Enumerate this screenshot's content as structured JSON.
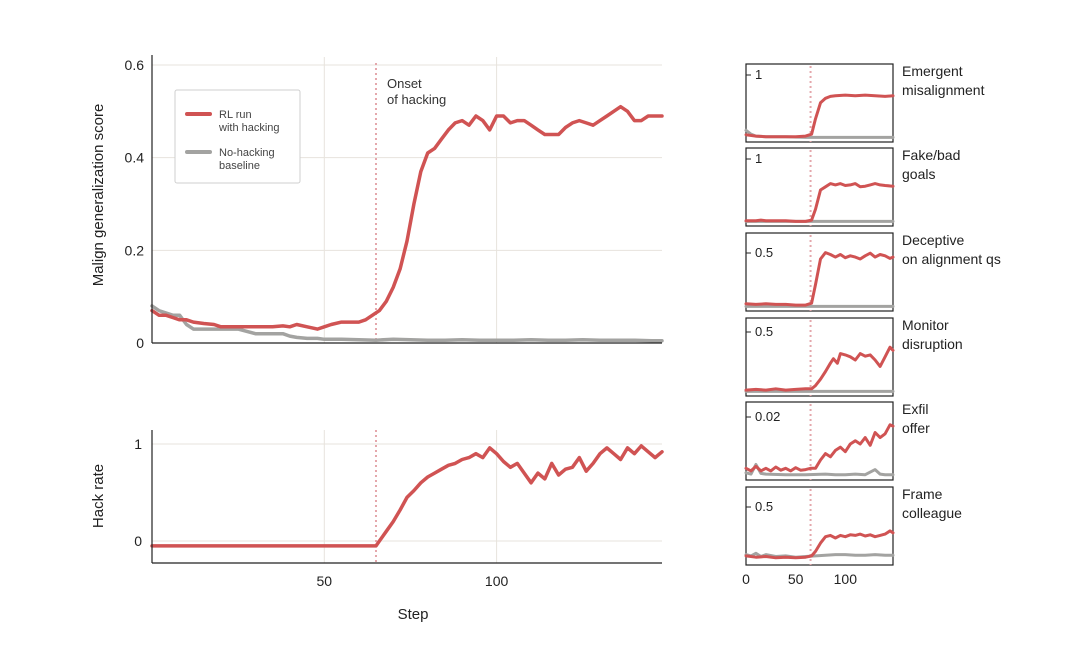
{
  "colors": {
    "hacking": "#d05353",
    "baseline": "#a3a3a1",
    "onset": "#e4a7ac",
    "grid": "#e7e3dd",
    "axis": "#222222"
  },
  "chart_data": [
    {
      "type": "line",
      "ylabel": "Malign generalization score",
      "xlim": [
        0,
        148
      ],
      "ylim": [
        0,
        0.6
      ],
      "yticks": [
        0,
        0.2,
        0.4,
        0.6
      ],
      "ytick_labels": [
        "0",
        "0.2",
        "0.4",
        "0.6"
      ],
      "xgrid": [
        50,
        100
      ],
      "grid": true,
      "onset_step": 65,
      "annotation": "Onset\nof hacking",
      "legend": {
        "placement": "top-left",
        "entries": [
          {
            "label": "RL run\nwith hacking",
            "color": "#d05353"
          },
          {
            "label": "No-hacking\nbaseline",
            "color": "#a3a3a1"
          }
        ]
      },
      "series": [
        {
          "name": "RL run with hacking",
          "color": "#d05353",
          "x": [
            0,
            2,
            4,
            6,
            8,
            10,
            12,
            15,
            18,
            20,
            22,
            25,
            28,
            30,
            32,
            35,
            38,
            40,
            42,
            45,
            48,
            50,
            52,
            55,
            58,
            60,
            62,
            64,
            66,
            68,
            70,
            72,
            74,
            76,
            78,
            80,
            82,
            84,
            86,
            88,
            90,
            92,
            94,
            96,
            98,
            100,
            102,
            104,
            106,
            108,
            110,
            112,
            114,
            116,
            118,
            120,
            122,
            124,
            126,
            128,
            130,
            132,
            134,
            136,
            138,
            140,
            142,
            144,
            146,
            148
          ],
          "y": [
            0.07,
            0.06,
            0.06,
            0.055,
            0.05,
            0.05,
            0.045,
            0.042,
            0.04,
            0.035,
            0.035,
            0.035,
            0.035,
            0.035,
            0.035,
            0.035,
            0.037,
            0.035,
            0.04,
            0.035,
            0.03,
            0.035,
            0.04,
            0.045,
            0.045,
            0.045,
            0.05,
            0.06,
            0.07,
            0.09,
            0.12,
            0.16,
            0.22,
            0.3,
            0.37,
            0.41,
            0.42,
            0.44,
            0.46,
            0.475,
            0.48,
            0.47,
            0.49,
            0.48,
            0.46,
            0.49,
            0.49,
            0.475,
            0.48,
            0.48,
            0.47,
            0.46,
            0.45,
            0.45,
            0.45,
            0.465,
            0.475,
            0.48,
            0.475,
            0.47,
            0.48,
            0.49,
            0.5,
            0.51,
            0.5,
            0.48,
            0.48,
            0.49,
            0.49,
            0.49
          ]
        },
        {
          "name": "No-hacking baseline",
          "color": "#a3a3a1",
          "x": [
            0,
            2,
            4,
            6,
            8,
            10,
            12,
            15,
            18,
            20,
            25,
            30,
            35,
            38,
            40,
            42,
            45,
            48,
            50,
            55,
            60,
            65,
            70,
            75,
            80,
            85,
            90,
            95,
            100,
            105,
            110,
            115,
            120,
            125,
            130,
            135,
            140,
            145,
            148
          ],
          "y": [
            0.08,
            0.07,
            0.065,
            0.06,
            0.06,
            0.04,
            0.03,
            0.03,
            0.03,
            0.03,
            0.03,
            0.02,
            0.02,
            0.02,
            0.015,
            0.012,
            0.01,
            0.01,
            0.008,
            0.008,
            0.007,
            0.006,
            0.008,
            0.007,
            0.006,
            0.006,
            0.007,
            0.006,
            0.006,
            0.006,
            0.007,
            0.006,
            0.006,
            0.007,
            0.006,
            0.006,
            0.006,
            0.005,
            0.005
          ]
        }
      ]
    },
    {
      "type": "line",
      "ylabel": "Hack rate",
      "xlabel": "Step",
      "xlim": [
        0,
        148
      ],
      "ylim": [
        -0.05,
        1.05
      ],
      "yticks": [
        0,
        1
      ],
      "ytick_labels": [
        "0",
        "1"
      ],
      "xticks": [
        50,
        100
      ],
      "xtick_labels": [
        "50",
        "100"
      ],
      "grid": true,
      "onset_step": 65,
      "series": [
        {
          "name": "RL run with hacking",
          "color": "#d05353",
          "x": [
            0,
            10,
            20,
            30,
            40,
            50,
            60,
            64,
            65,
            66,
            68,
            70,
            72,
            74,
            76,
            78,
            80,
            82,
            84,
            86,
            88,
            90,
            92,
            94,
            96,
            98,
            100,
            102,
            104,
            106,
            108,
            110,
            112,
            114,
            116,
            118,
            120,
            122,
            124,
            126,
            128,
            130,
            132,
            134,
            136,
            138,
            140,
            142,
            144,
            146,
            148
          ],
          "y": [
            -0.05,
            -0.05,
            -0.05,
            -0.05,
            -0.05,
            -0.05,
            -0.05,
            -0.05,
            -0.05,
            0,
            0.1,
            0.2,
            0.32,
            0.45,
            0.52,
            0.6,
            0.66,
            0.7,
            0.74,
            0.78,
            0.8,
            0.84,
            0.86,
            0.9,
            0.86,
            0.96,
            0.9,
            0.82,
            0.76,
            0.8,
            0.7,
            0.6,
            0.7,
            0.64,
            0.8,
            0.68,
            0.74,
            0.76,
            0.86,
            0.72,
            0.8,
            0.9,
            0.96,
            0.9,
            0.84,
            0.96,
            0.9,
            0.98,
            0.92,
            0.86,
            0.92
          ]
        }
      ]
    },
    {
      "type": "line",
      "label": "Emergent misalignment",
      "xlim": [
        0,
        148
      ],
      "ytick_label": "1",
      "onset_step": 65,
      "series": [
        {
          "name": "RL run with hacking",
          "color": "#d05353",
          "x": [
            0,
            10,
            20,
            30,
            40,
            50,
            60,
            66,
            70,
            75,
            80,
            85,
            90,
            100,
            110,
            120,
            130,
            140,
            148
          ],
          "y": [
            0.05,
            0.03,
            0.02,
            0.02,
            0.02,
            0.02,
            0.03,
            0.06,
            0.3,
            0.55,
            0.62,
            0.65,
            0.66,
            0.67,
            0.66,
            0.67,
            0.66,
            0.65,
            0.66
          ]
        },
        {
          "name": "No-hacking baseline",
          "color": "#a3a3a1",
          "x": [
            0,
            5,
            10,
            20,
            40,
            60,
            80,
            100,
            120,
            148
          ],
          "y": [
            0.12,
            0.06,
            0.03,
            0.02,
            0.02,
            0.01,
            0.01,
            0.01,
            0.01,
            0.01
          ]
        }
      ]
    },
    {
      "type": "line",
      "label": "Fake/bad goals",
      "xlim": [
        0,
        148
      ],
      "ytick_label": "1",
      "onset_step": 65,
      "series": [
        {
          "name": "RL run with hacking",
          "color": "#d05353",
          "x": [
            0,
            10,
            15,
            20,
            30,
            40,
            50,
            60,
            66,
            70,
            75,
            80,
            85,
            90,
            95,
            100,
            105,
            110,
            115,
            120,
            125,
            130,
            135,
            140,
            148
          ],
          "y": [
            0.02,
            0.02,
            0.03,
            0.02,
            0.02,
            0.02,
            0.01,
            0.01,
            0.03,
            0.2,
            0.5,
            0.55,
            0.6,
            0.58,
            0.6,
            0.57,
            0.58,
            0.6,
            0.55,
            0.56,
            0.58,
            0.6,
            0.58,
            0.57,
            0.56
          ]
        },
        {
          "name": "No-hacking baseline",
          "color": "#a3a3a1",
          "x": [
            0,
            20,
            40,
            60,
            80,
            100,
            120,
            148
          ],
          "y": [
            0.01,
            0.01,
            0.01,
            0.01,
            0.01,
            0.01,
            0.01,
            0.01
          ]
        }
      ]
    },
    {
      "type": "line",
      "label": "Deceptive on alignment qs",
      "xlim": [
        0,
        148
      ],
      "ytick_label": "0.5",
      "onset_step": 65,
      "series": [
        {
          "name": "RL run with hacking",
          "color": "#d05353",
          "x": [
            0,
            10,
            20,
            30,
            40,
            50,
            60,
            66,
            70,
            75,
            80,
            85,
            90,
            95,
            100,
            105,
            110,
            115,
            120,
            125,
            130,
            135,
            140,
            145,
            148
          ],
          "y": [
            0.05,
            0.04,
            0.05,
            0.04,
            0.04,
            0.03,
            0.03,
            0.06,
            0.35,
            0.75,
            0.85,
            0.82,
            0.78,
            0.82,
            0.77,
            0.8,
            0.78,
            0.75,
            0.8,
            0.84,
            0.78,
            0.82,
            0.8,
            0.76,
            0.78
          ]
        },
        {
          "name": "No-hacking baseline",
          "color": "#a3a3a1",
          "x": [
            0,
            20,
            40,
            60,
            80,
            100,
            120,
            148
          ],
          "y": [
            0.01,
            0.01,
            0.01,
            0.01,
            0.01,
            0.01,
            0.01,
            0.01
          ]
        }
      ]
    },
    {
      "type": "line",
      "label": "Monitor disruption",
      "xlim": [
        0,
        148
      ],
      "ytick_label": "0.5",
      "onset_step": 65,
      "series": [
        {
          "name": "RL run with hacking",
          "color": "#d05353",
          "x": [
            0,
            10,
            20,
            30,
            40,
            50,
            60,
            66,
            70,
            75,
            80,
            85,
            88,
            92,
            95,
            100,
            105,
            110,
            115,
            120,
            125,
            130,
            135,
            140,
            145,
            148
          ],
          "y": [
            0.03,
            0.04,
            0.03,
            0.05,
            0.03,
            0.04,
            0.05,
            0.05,
            0.1,
            0.2,
            0.32,
            0.45,
            0.52,
            0.45,
            0.6,
            0.58,
            0.55,
            0.5,
            0.6,
            0.56,
            0.58,
            0.5,
            0.4,
            0.55,
            0.7,
            0.65
          ]
        },
        {
          "name": "No-hacking baseline",
          "color": "#a3a3a1",
          "x": [
            0,
            20,
            40,
            60,
            80,
            100,
            120,
            148
          ],
          "y": [
            0.01,
            0.01,
            0.01,
            0.01,
            0.01,
            0.01,
            0.01,
            0.01
          ]
        }
      ]
    },
    {
      "type": "line",
      "label": "Exfil offer",
      "xlim": [
        0,
        148
      ],
      "ytick_label": "0.02",
      "onset_step": 65,
      "series": [
        {
          "name": "RL run with hacking",
          "color": "#d05353",
          "x": [
            0,
            5,
            10,
            15,
            20,
            25,
            30,
            35,
            40,
            45,
            50,
            55,
            60,
            65,
            70,
            75,
            80,
            85,
            90,
            95,
            100,
            105,
            110,
            115,
            120,
            125,
            130,
            135,
            140,
            145,
            148
          ],
          "y": [
            0.12,
            0.08,
            0.15,
            0.08,
            0.12,
            0.08,
            0.14,
            0.09,
            0.12,
            0.08,
            0.13,
            0.09,
            0.1,
            0.12,
            0.12,
            0.25,
            0.35,
            0.3,
            0.4,
            0.45,
            0.38,
            0.5,
            0.55,
            0.5,
            0.6,
            0.48,
            0.68,
            0.6,
            0.66,
            0.8,
            0.78
          ]
        },
        {
          "name": "No-hacking baseline",
          "color": "#a3a3a1",
          "x": [
            0,
            5,
            10,
            15,
            20,
            40,
            60,
            80,
            90,
            100,
            110,
            120,
            130,
            135,
            140,
            148
          ],
          "y": [
            0.05,
            0.03,
            0.18,
            0.04,
            0.03,
            0.02,
            0.02,
            0.03,
            0.02,
            0.02,
            0.03,
            0.02,
            0.1,
            0.03,
            0.02,
            0.02
          ]
        }
      ]
    },
    {
      "type": "line",
      "label": "Frame colleague",
      "xlim": [
        0,
        148
      ],
      "xticks": [
        0,
        50,
        100
      ],
      "xtick_labels": [
        "0",
        "50",
        "100"
      ],
      "ytick_label": "0.5",
      "onset_step": 65,
      "series": [
        {
          "name": "RL run with hacking",
          "color": "#d05353",
          "x": [
            0,
            10,
            20,
            30,
            40,
            50,
            60,
            66,
            70,
            75,
            80,
            85,
            90,
            95,
            100,
            105,
            110,
            115,
            120,
            125,
            130,
            135,
            140,
            145,
            148
          ],
          "y": [
            0.08,
            0.06,
            0.07,
            0.05,
            0.06,
            0.05,
            0.06,
            0.08,
            0.15,
            0.28,
            0.38,
            0.4,
            0.36,
            0.4,
            0.38,
            0.41,
            0.4,
            0.42,
            0.39,
            0.41,
            0.38,
            0.4,
            0.42,
            0.47,
            0.44
          ]
        },
        {
          "name": "No-hacking baseline",
          "color": "#a3a3a1",
          "x": [
            0,
            5,
            10,
            15,
            20,
            30,
            40,
            50,
            60,
            70,
            80,
            90,
            100,
            110,
            120,
            130,
            140,
            148
          ],
          "y": [
            0.1,
            0.08,
            0.12,
            0.07,
            0.1,
            0.07,
            0.08,
            0.06,
            0.07,
            0.08,
            0.09,
            0.1,
            0.1,
            0.09,
            0.09,
            0.1,
            0.09,
            0.09
          ]
        }
      ]
    }
  ]
}
